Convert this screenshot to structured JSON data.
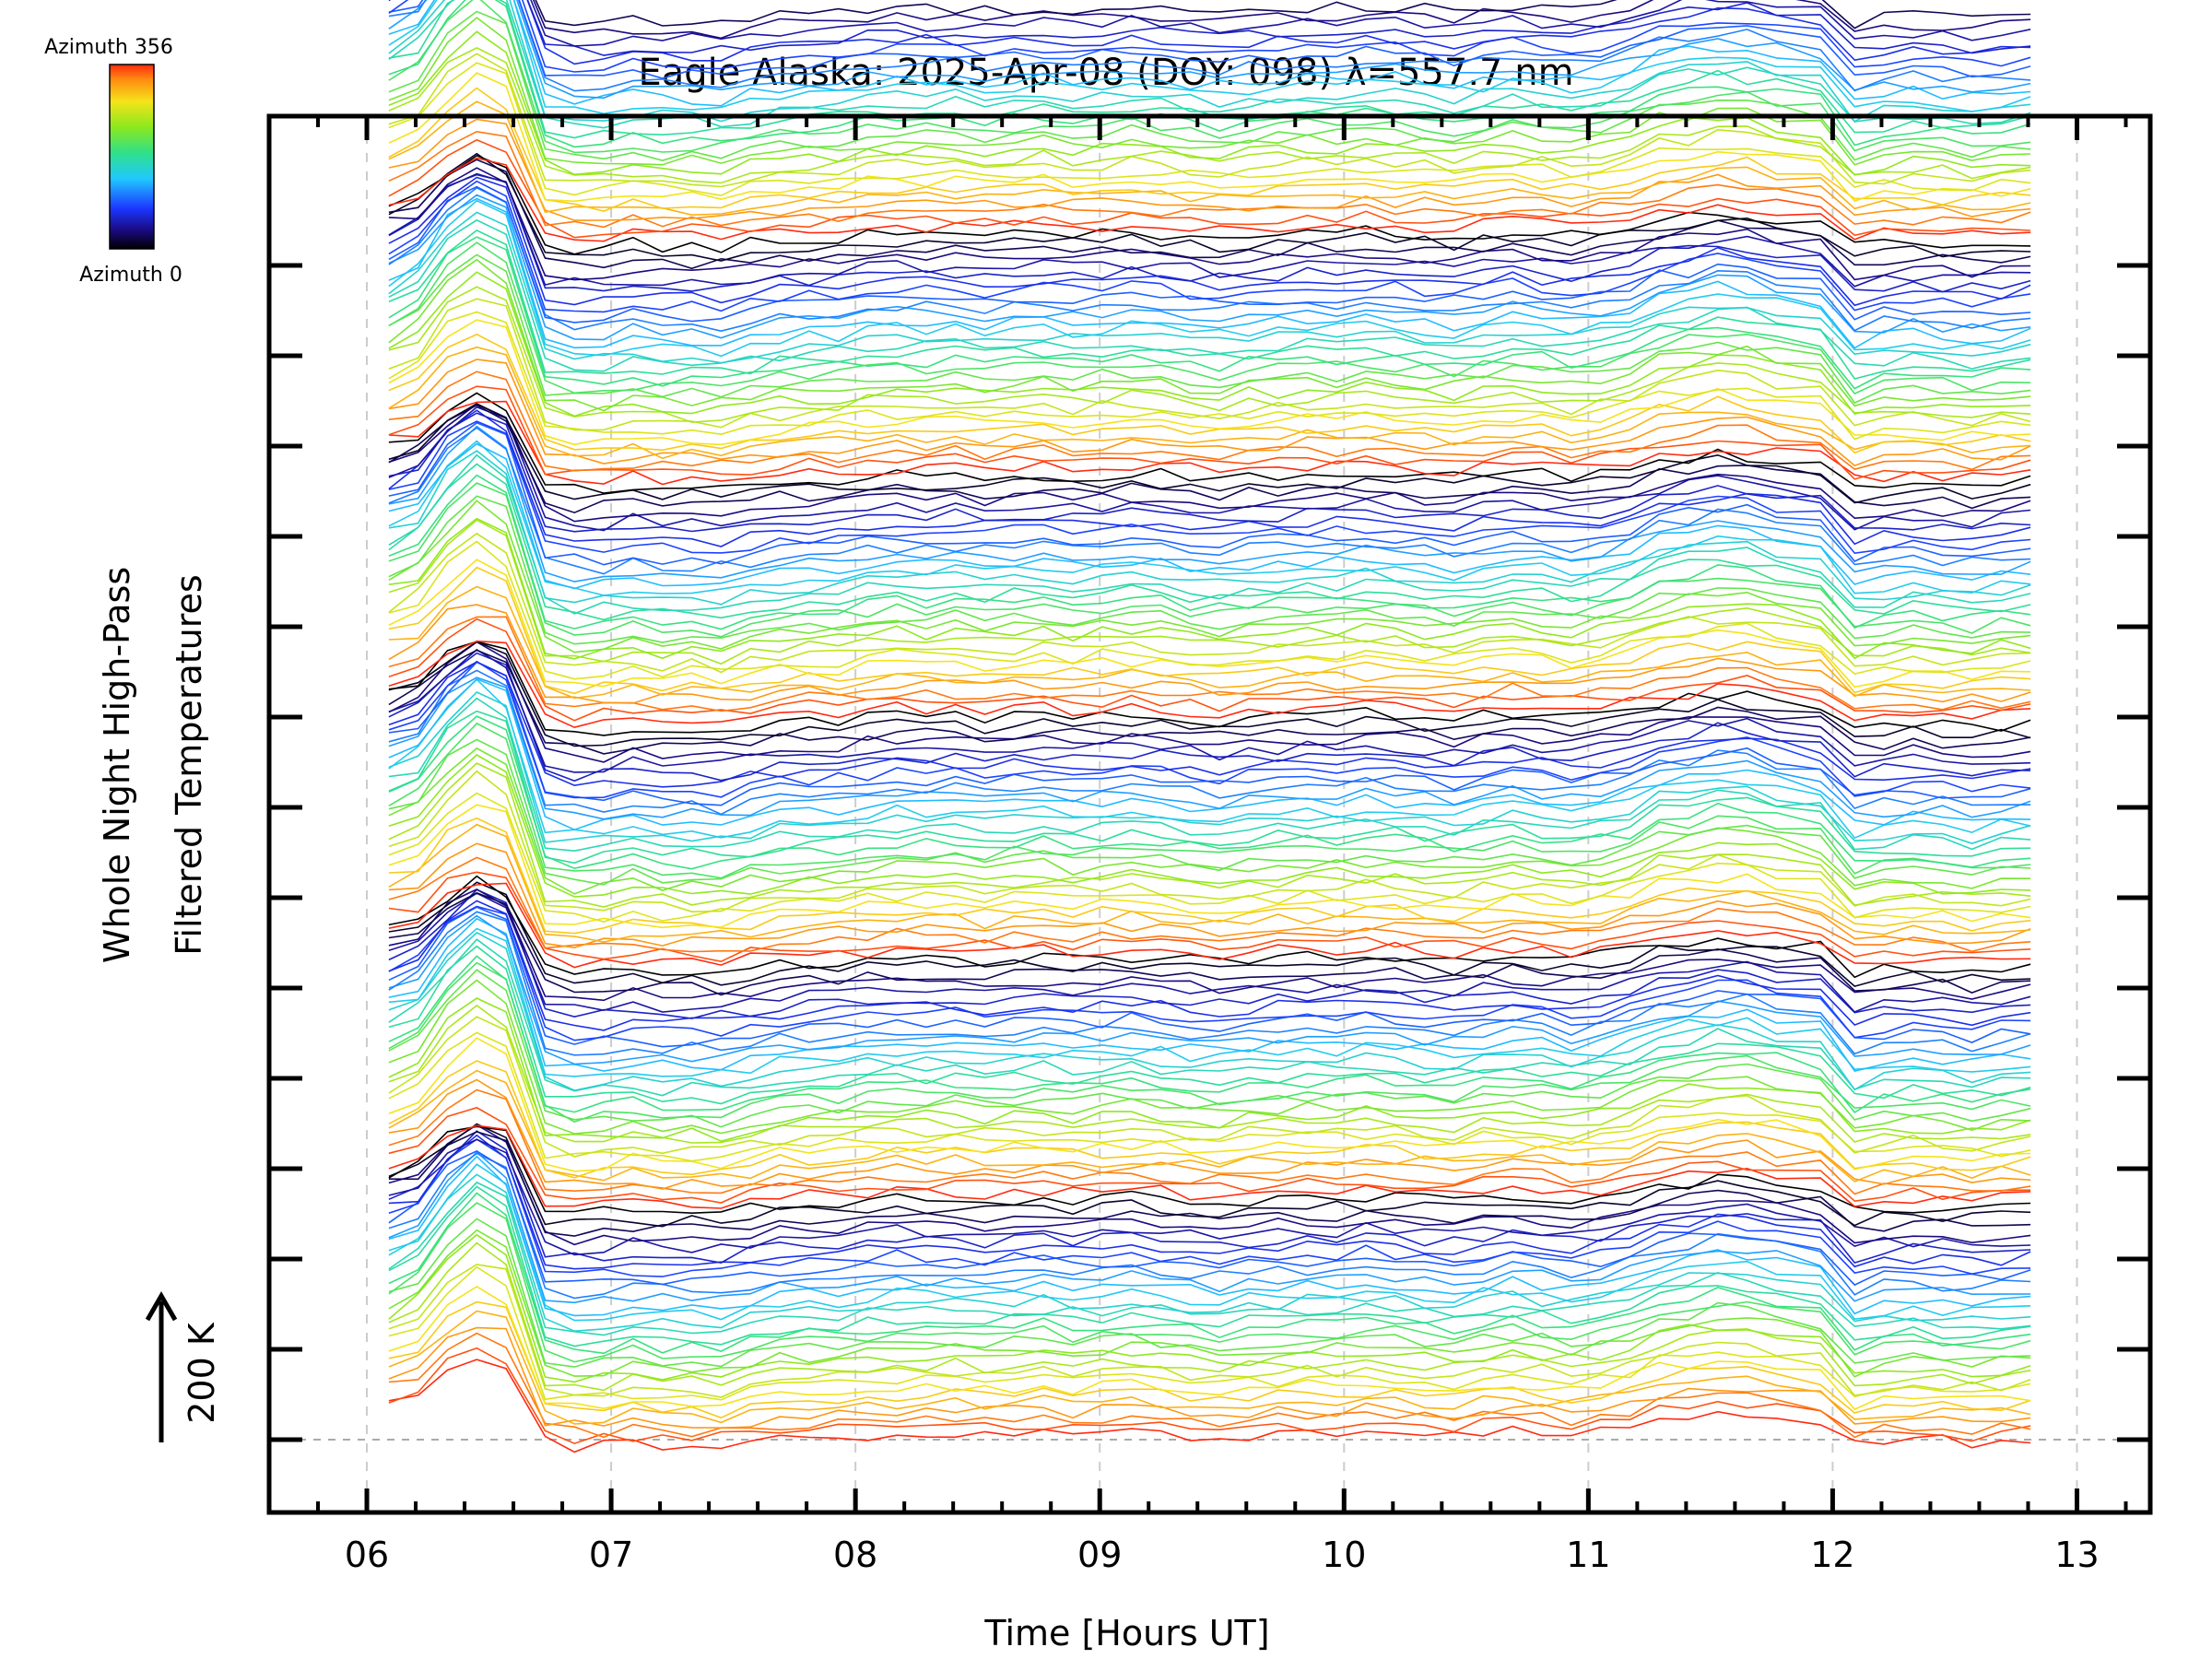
{
  "chart_data": {
    "type": "line",
    "title": "Eagle Alaska: 2025-Apr-08 (DOY: 098) λ=557.7 nm",
    "xlabel": "Time [Hours UT]",
    "ylabel_line1": "Whole Night High-Pass",
    "ylabel_line2": "Filtered Temperatures",
    "scale_label": "200 K",
    "xlim": [
      5.6,
      13.3
    ],
    "xticks": [
      "06",
      "07",
      "08",
      "09",
      "10",
      "11",
      "12",
      "13"
    ],
    "xtick_values": [
      6,
      7,
      8,
      9,
      10,
      11,
      12,
      13
    ],
    "y_axis_numbered": false,
    "grid": "dashed vertical lines at each hour",
    "colorbar": {
      "top_label": "Azimuth 356",
      "bottom_label": "Azimuth 0",
      "colormap": "rainbow (black–blue–cyan–green–yellow–red)"
    },
    "series_count": 184,
    "series_groups": 6,
    "azimuth_range": [
      0,
      356
    ],
    "time_samples": [
      6.09,
      6.21,
      6.33,
      6.45,
      6.57,
      6.73,
      6.85,
      6.97,
      7.09,
      7.21,
      7.33,
      7.45,
      7.57,
      7.69,
      7.81,
      7.93,
      8.05,
      8.17,
      8.29,
      8.41,
      8.53,
      8.65,
      8.77,
      8.89,
      9.01,
      9.13,
      9.25,
      9.37,
      9.49,
      9.61,
      9.73,
      9.85,
      9.97,
      10.09,
      10.21,
      10.33,
      10.45,
      10.57,
      10.69,
      10.81,
      10.93,
      11.05,
      11.17,
      11.29,
      11.41,
      11.53,
      11.65,
      11.77,
      11.95,
      12.09,
      12.21,
      12.33,
      12.45,
      12.57,
      12.69,
      12.81
    ],
    "common_profile_K": [
      60,
      80,
      140,
      175,
      150,
      -30,
      -40,
      -38,
      -30,
      -36,
      -34,
      -37,
      -28,
      -20,
      -18,
      -16,
      -10,
      -6,
      -8,
      -5,
      -12,
      -7,
      -4,
      -10,
      -6,
      -2,
      -6,
      -12,
      -16,
      -10,
      -8,
      -4,
      -6,
      0,
      -3,
      -8,
      -12,
      -4,
      2,
      -3,
      -9,
      -2,
      8,
      28,
      34,
      42,
      40,
      30,
      20,
      -38,
      -28,
      -24,
      -28,
      -32,
      -26,
      -22
    ]
  }
}
